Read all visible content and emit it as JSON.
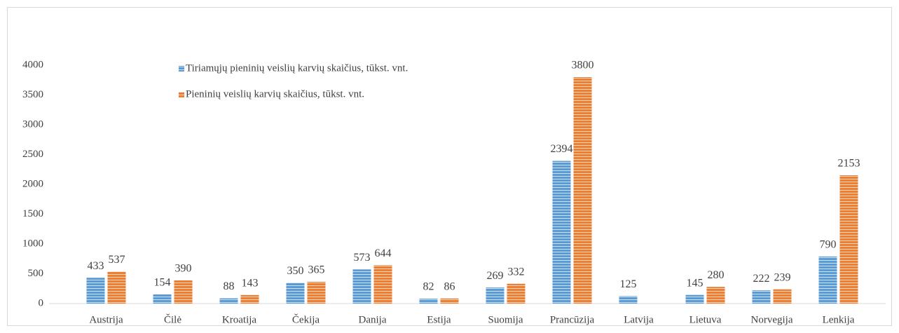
{
  "chart_data": {
    "type": "bar",
    "categories": [
      "Austrija",
      "Čilė",
      "Kroatija",
      "Čekija",
      "Danija",
      "Estija",
      "Suomija",
      "Prancūzija",
      "Latvija",
      "Lietuva",
      "Norvegija",
      "Lenkija"
    ],
    "series": [
      {
        "name": "Tiriamųjų pieninių veislių karvių skaičius, tūkst. vnt.",
        "color": "#5b9bd5",
        "values": [
          433,
          154,
          88,
          350,
          573,
          82,
          269,
          2394,
          125,
          145,
          222,
          790
        ]
      },
      {
        "name": "Pieninių veislių karvių skaičius, tūkst. vnt.",
        "color": "#ed7d31",
        "values": [
          537,
          390,
          143,
          365,
          644,
          86,
          332,
          3800,
          null,
          280,
          239,
          2153
        ]
      }
    ],
    "ylim": [
      0,
      4000
    ],
    "yticks": [
      0,
      500,
      1000,
      1500,
      2000,
      2500,
      3000,
      3500,
      4000
    ],
    "grid": false,
    "legend": "top-left"
  }
}
